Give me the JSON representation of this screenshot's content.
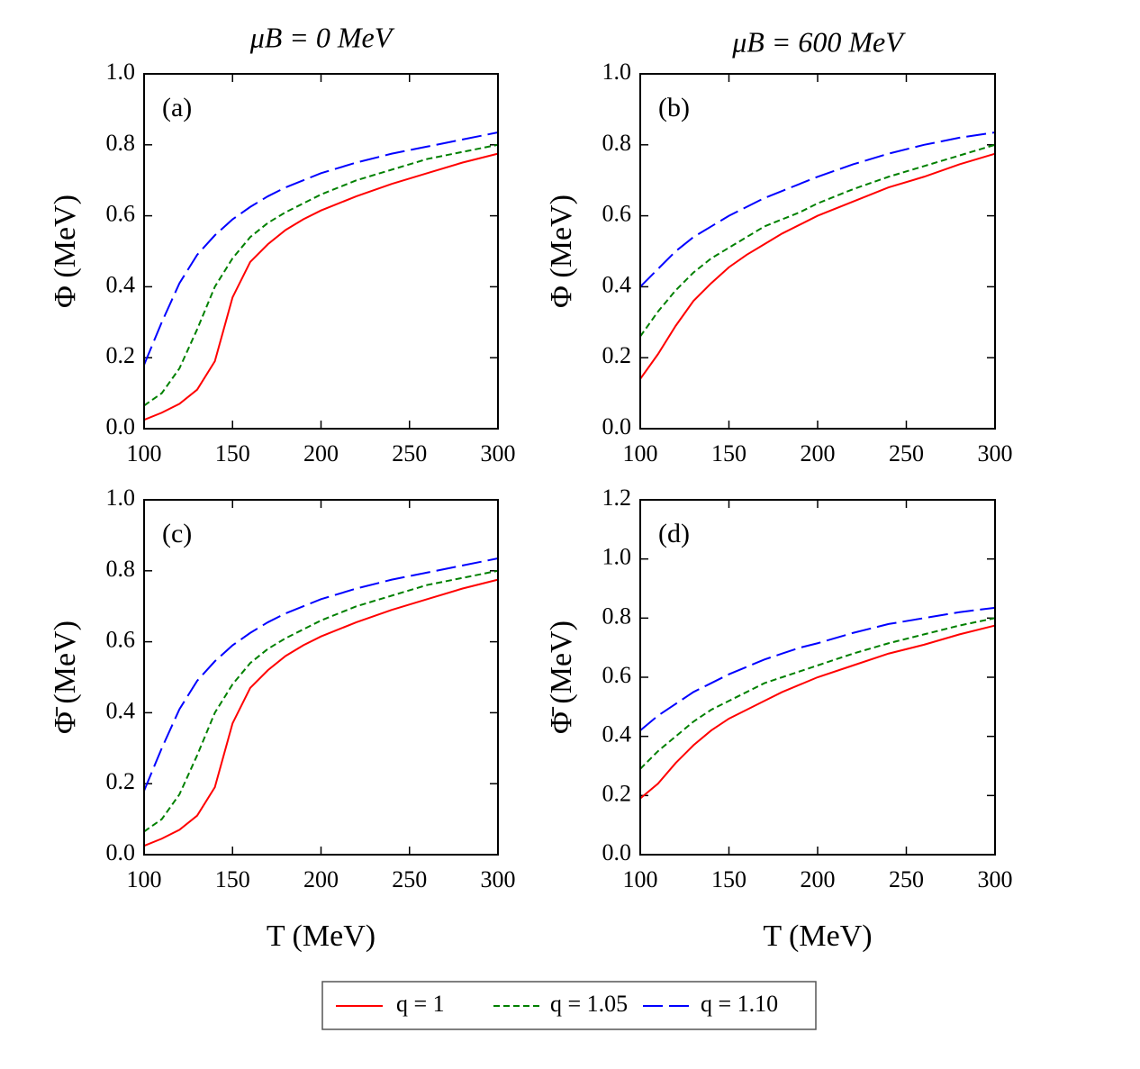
{
  "chart_data": [
    {
      "type": "line",
      "title": "μB = 0 MeV",
      "panel_label": "(a)",
      "ylabel": "Φ (MeV)",
      "x": [
        100,
        110,
        120,
        130,
        140,
        150,
        160,
        170,
        180,
        190,
        200,
        220,
        240,
        260,
        280,
        300
      ],
      "series": [
        {
          "name": "q = 1",
          "color": "#ff0000",
          "line_style": "solid",
          "values": [
            0.025,
            0.045,
            0.07,
            0.11,
            0.19,
            0.37,
            0.47,
            0.52,
            0.56,
            0.59,
            0.615,
            0.655,
            0.69,
            0.72,
            0.75,
            0.775
          ]
        },
        {
          "name": "q = 1.05",
          "color": "#008000",
          "line_style": "dashed",
          "values": [
            0.065,
            0.1,
            0.17,
            0.28,
            0.4,
            0.48,
            0.54,
            0.58,
            0.61,
            0.635,
            0.66,
            0.7,
            0.73,
            0.76,
            0.78,
            0.8
          ]
        },
        {
          "name": "q = 1.10",
          "color": "#0000ff",
          "line_style": "long-dashed",
          "values": [
            0.18,
            0.3,
            0.41,
            0.49,
            0.545,
            0.59,
            0.625,
            0.655,
            0.68,
            0.7,
            0.72,
            0.75,
            0.775,
            0.795,
            0.815,
            0.835
          ]
        }
      ],
      "xlim": [
        100,
        300
      ],
      "ylim": [
        0,
        1
      ],
      "xticks": [
        100,
        150,
        200,
        250,
        300
      ],
      "yticks": [
        {
          "value": 0,
          "label": "0.0"
        },
        0.2,
        0.4,
        0.6,
        0.8,
        {
          "value": 1,
          "label": "1.0"
        }
      ]
    },
    {
      "type": "line",
      "title": "μB = 600 MeV",
      "panel_label": "(b)",
      "ylabel": "Φ (MeV)",
      "x": [
        100,
        110,
        120,
        130,
        140,
        150,
        160,
        170,
        180,
        190,
        200,
        220,
        240,
        260,
        280,
        300
      ],
      "series": [
        {
          "name": "q = 1",
          "color": "#ff0000",
          "line_style": "solid",
          "values": [
            0.14,
            0.21,
            0.29,
            0.36,
            0.41,
            0.455,
            0.49,
            0.52,
            0.55,
            0.575,
            0.6,
            0.64,
            0.68,
            0.71,
            0.745,
            0.775
          ]
        },
        {
          "name": "q = 1.05",
          "color": "#008000",
          "line_style": "dashed",
          "values": [
            0.26,
            0.33,
            0.39,
            0.44,
            0.48,
            0.51,
            0.54,
            0.57,
            0.59,
            0.61,
            0.635,
            0.675,
            0.71,
            0.74,
            0.77,
            0.8
          ]
        },
        {
          "name": "q = 1.10",
          "color": "#0000ff",
          "line_style": "long-dashed",
          "values": [
            0.4,
            0.45,
            0.5,
            0.54,
            0.57,
            0.6,
            0.625,
            0.65,
            0.67,
            0.69,
            0.71,
            0.745,
            0.775,
            0.8,
            0.82,
            0.835
          ]
        }
      ],
      "xlim": [
        100,
        300
      ],
      "ylim": [
        0,
        1
      ],
      "xticks": [
        100,
        150,
        200,
        250,
        300
      ],
      "yticks": [
        {
          "value": 0,
          "label": "0.0"
        },
        0.2,
        0.4,
        0.6,
        0.8,
        {
          "value": 1,
          "label": "1.0"
        }
      ]
    },
    {
      "type": "line",
      "panel_label": "(c)",
      "ylabel": "Φ̄ (MeV)",
      "xlabel": "T (MeV)",
      "x": [
        100,
        110,
        120,
        130,
        140,
        150,
        160,
        170,
        180,
        190,
        200,
        220,
        240,
        260,
        280,
        300
      ],
      "series": [
        {
          "name": "q = 1",
          "color": "#ff0000",
          "line_style": "solid",
          "values": [
            0.025,
            0.045,
            0.07,
            0.11,
            0.19,
            0.37,
            0.47,
            0.52,
            0.56,
            0.59,
            0.615,
            0.655,
            0.69,
            0.72,
            0.75,
            0.775
          ]
        },
        {
          "name": "q = 1.05",
          "color": "#008000",
          "line_style": "dashed",
          "values": [
            0.065,
            0.1,
            0.17,
            0.28,
            0.4,
            0.48,
            0.54,
            0.58,
            0.61,
            0.635,
            0.66,
            0.7,
            0.73,
            0.76,
            0.78,
            0.8
          ]
        },
        {
          "name": "q = 1.10",
          "color": "#0000ff",
          "line_style": "long-dashed",
          "values": [
            0.18,
            0.3,
            0.41,
            0.49,
            0.545,
            0.59,
            0.625,
            0.655,
            0.68,
            0.7,
            0.72,
            0.75,
            0.775,
            0.795,
            0.815,
            0.835
          ]
        }
      ],
      "xlim": [
        100,
        300
      ],
      "ylim": [
        0,
        1
      ],
      "xticks": [
        100,
        150,
        200,
        250,
        300
      ],
      "yticks": [
        {
          "value": 0,
          "label": "0.0"
        },
        0.2,
        0.4,
        0.6,
        0.8,
        {
          "value": 1,
          "label": "1.0"
        }
      ]
    },
    {
      "type": "line",
      "panel_label": "(d)",
      "ylabel": "Φ̄ (MeV)",
      "xlabel": "T (MeV)",
      "x": [
        100,
        110,
        120,
        130,
        140,
        150,
        160,
        170,
        180,
        190,
        200,
        220,
        240,
        260,
        280,
        300
      ],
      "series": [
        {
          "name": "q = 1",
          "color": "#ff0000",
          "line_style": "solid",
          "values": [
            0.19,
            0.24,
            0.31,
            0.37,
            0.42,
            0.46,
            0.49,
            0.52,
            0.55,
            0.575,
            0.6,
            0.64,
            0.68,
            0.71,
            0.745,
            0.775
          ]
        },
        {
          "name": "q = 1.05",
          "color": "#008000",
          "line_style": "dashed",
          "values": [
            0.29,
            0.35,
            0.4,
            0.45,
            0.49,
            0.52,
            0.55,
            0.58,
            0.6,
            0.62,
            0.64,
            0.68,
            0.715,
            0.745,
            0.775,
            0.8
          ]
        },
        {
          "name": "q = 1.10",
          "color": "#0000ff",
          "line_style": "long-dashed",
          "values": [
            0.42,
            0.47,
            0.51,
            0.55,
            0.58,
            0.61,
            0.635,
            0.66,
            0.68,
            0.7,
            0.715,
            0.75,
            0.78,
            0.8,
            0.82,
            0.835
          ]
        }
      ],
      "xlim": [
        100,
        300
      ],
      "ylim": [
        0,
        1.2
      ],
      "xticks": [
        100,
        150,
        200,
        250,
        300
      ],
      "yticks": [
        {
          "value": 0,
          "label": "0.0"
        },
        0.2,
        0.4,
        0.6,
        0.8,
        {
          "value": 1,
          "label": "1.0"
        },
        1.2
      ]
    }
  ]
}
